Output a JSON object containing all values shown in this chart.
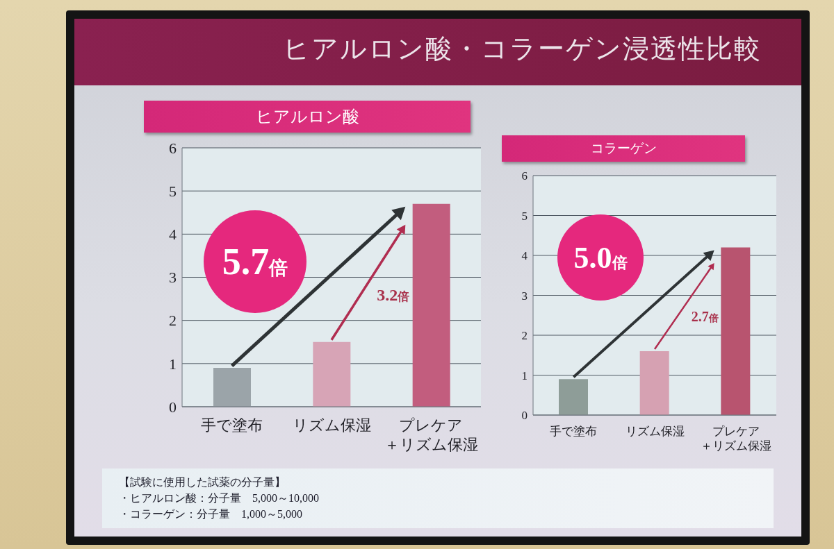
{
  "chart_data": [
    {
      "type": "bar",
      "title": "ヒアルロン酸・コラーゲン浸透性比較",
      "subtitle": "ヒアルロン酸",
      "categories": [
        "手で塗布",
        "リズム保湿",
        "プレケア＋リズム保湿"
      ],
      "values": [
        0.9,
        1.5,
        4.7
      ],
      "colors": [
        "#9ba4a9",
        "#d7a4b6",
        "#c25d7e"
      ],
      "ylim": [
        0,
        6
      ],
      "yticks": [
        0,
        1,
        2,
        3,
        4,
        5,
        6
      ],
      "grid": "y",
      "annotations": [
        "5.7倍",
        "3.2倍"
      ]
    },
    {
      "type": "bar",
      "subtitle": "コラーゲン",
      "categories": [
        "手で塗布",
        "リズム保湿",
        "プレケア＋リズム保湿"
      ],
      "values": [
        0.9,
        1.6,
        4.2
      ],
      "colors": [
        "#8e9d98",
        "#d6a1b2",
        "#b8546f"
      ],
      "ylim": [
        0,
        6
      ],
      "yticks": [
        0,
        1,
        2,
        3,
        4,
        5,
        6
      ],
      "grid": "y",
      "annotations": [
        "5.0倍",
        "2.7倍"
      ]
    },
    {
      "type": "other",
      "annotations": [
        "【試験に使用した試薬の分子量】",
        "・ヒアルロン酸：分子量　5,000～10,000",
        "・コラーゲン：分子量　1,000～5,000"
      ]
    }
  ]
}
